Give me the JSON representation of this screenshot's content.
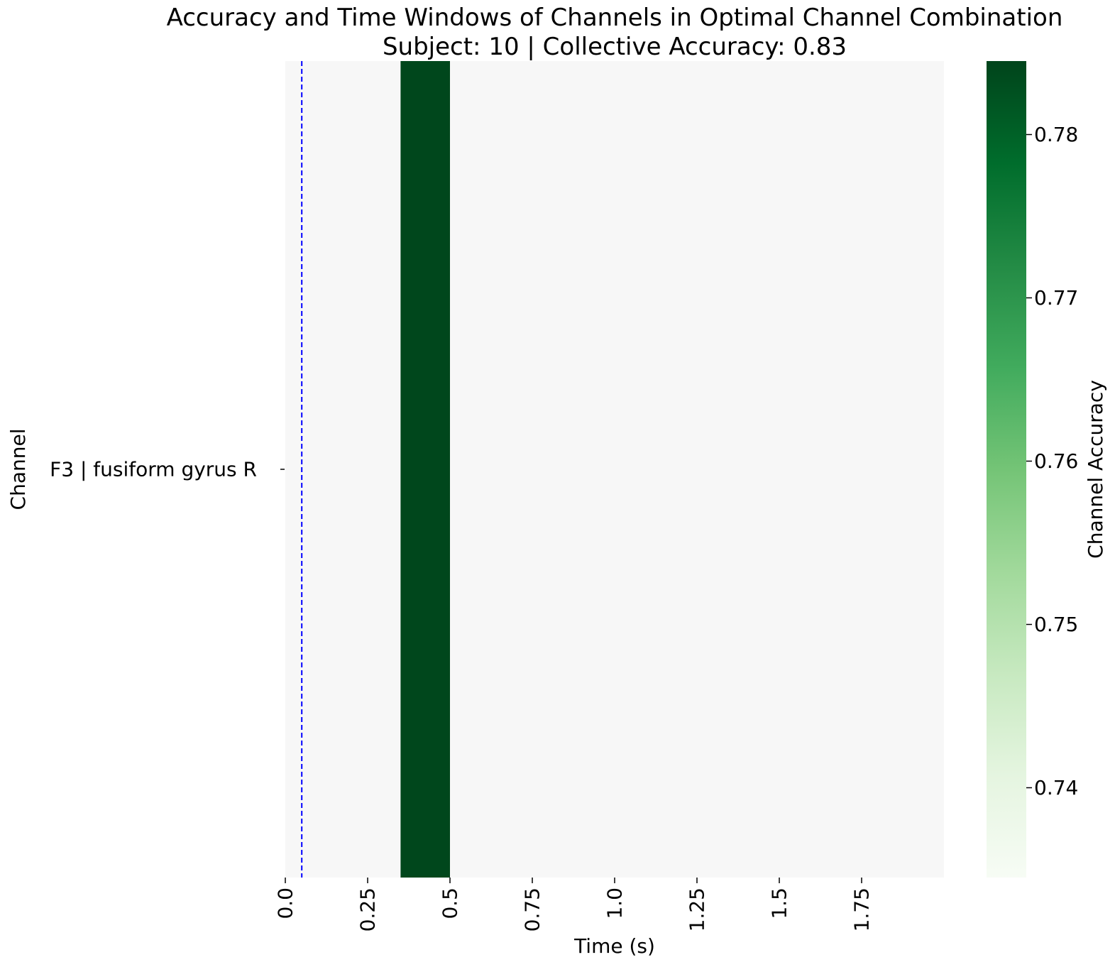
{
  "chart_data": {
    "type": "heatmap",
    "title": "Accuracy and Time Windows of Channels in Optimal Channel Combination",
    "subtitle": "Subject: 10 | Collective Accuracy: 0.83",
    "xlabel": "Time (s)",
    "ylabel": "Channel",
    "x_range": [
      0.0,
      2.0
    ],
    "x_ticks": [
      0.0,
      0.25,
      0.5,
      0.75,
      1.0,
      1.25,
      1.5,
      1.75
    ],
    "x_tick_labels": [
      "0.0",
      "0.25",
      "0.5",
      "0.75",
      "1.0",
      "1.25",
      "1.5",
      "1.75"
    ],
    "channels": [
      "F3 | fusiform gyrus R"
    ],
    "background_color": "#f7f7f7",
    "cells": [
      {
        "channel": "F3 | fusiform gyrus R",
        "x_start": 0.35,
        "x_end": 0.5,
        "accuracy": 0.784
      }
    ],
    "reference_line": {
      "x": 0.05,
      "color": "#0000ff",
      "style": "dashed"
    },
    "colorbar": {
      "label": "Channel Accuracy",
      "range": [
        0.7345,
        0.7845
      ],
      "ticks": [
        0.74,
        0.75,
        0.76,
        0.77,
        0.78
      ],
      "tick_labels": [
        "0.74",
        "0.75",
        "0.76",
        "0.77",
        "0.78"
      ],
      "colormap_stops": [
        "#f7fcf5",
        "#e5f5e0",
        "#c7e9c0",
        "#a1d99b",
        "#74c476",
        "#41ab5d",
        "#238b45",
        "#006d2c",
        "#00441b"
      ]
    },
    "grid": false
  }
}
